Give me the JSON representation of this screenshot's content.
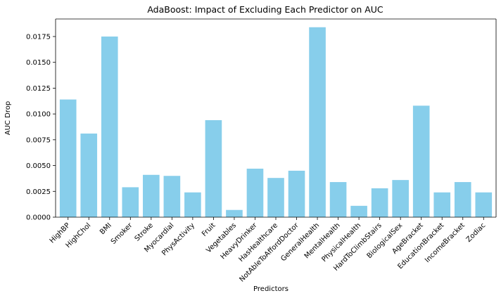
{
  "chart_data": {
    "type": "bar",
    "title": "AdaBoost: Impact of Excluding Each Predictor on AUC",
    "xlabel": "Predictors",
    "ylabel": "AUC Drop",
    "ylim": [
      0,
      0.0192
    ],
    "yticks": [
      "0.0000",
      "0.0025",
      "0.0050",
      "0.0075",
      "0.0100",
      "0.0125",
      "0.0150",
      "0.0175"
    ],
    "ytick_values": [
      0,
      0.0025,
      0.005,
      0.0075,
      0.01,
      0.0125,
      0.015,
      0.0175
    ],
    "bar_color": "#87ceeb",
    "grid": false,
    "categories": [
      "HighBP",
      "HighChol",
      "BMI",
      "Smoker",
      "Stroke",
      "Myocardial",
      "PhysActivity",
      "Fruit",
      "Vegetables",
      "HeavyDrinker",
      "HasHealthcare",
      "NotAbleToAffordDoctor",
      "GeneralHealth",
      "MentalHealth",
      "PhysicalHealth",
      "HardToClimbStairs",
      "BiologicalSex",
      "AgeBracket",
      "EducationBracket",
      "IncomeBracket",
      "Zodiac"
    ],
    "values": [
      0.0114,
      0.0081,
      0.0175,
      0.0029,
      0.0041,
      0.004,
      0.0024,
      0.0094,
      0.0007,
      0.0047,
      0.0038,
      0.0045,
      0.0184,
      0.0034,
      0.0011,
      0.0028,
      0.0036,
      0.0108,
      0.0024,
      0.0034,
      0.0024
    ]
  }
}
